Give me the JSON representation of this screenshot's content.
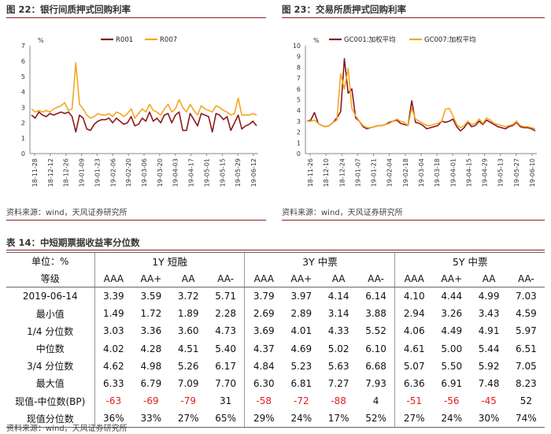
{
  "figure22": {
    "title": "图 22：银行间质押式回购利率",
    "unit": "%",
    "legend": [
      "R001",
      "R007"
    ],
    "source": "资料来源：wind，天风证券研究所"
  },
  "figure23": {
    "title": "图 23：交易所质押式回购利率",
    "unit": "%",
    "legend": [
      "GC001:加权平均",
      "GC007:加权平均"
    ],
    "source": "资料来源：wind，天风证券研究所"
  },
  "colors": {
    "series1": "#8b1a1a",
    "series2": "#f5a623",
    "rule": "#8a1e1e",
    "negative": "#e02020"
  },
  "chart_data": [
    {
      "type": "line",
      "title": "图 22：银行间质押式回购利率",
      "ylabel": "%",
      "ylim": [
        0,
        7
      ],
      "yticks": [
        "0",
        "1",
        "2",
        "3",
        "4",
        "5",
        "6",
        "7"
      ],
      "xticks": [
        "18-11-28",
        "18-12-12",
        "18-12-26",
        "19-01-09",
        "19-01-23",
        "19-02-06",
        "19-02-20",
        "19-03-06",
        "19-03-20",
        "19-04-03",
        "19-04-17",
        "19-05-01",
        "19-05-15",
        "19-05-29",
        "19-06-12"
      ],
      "legend_position": "top-center",
      "series": [
        {
          "name": "R001",
          "values": [
            2.5,
            2.3,
            2.7,
            2.5,
            2.4,
            2.6,
            2.5,
            2.6,
            2.7,
            2.6,
            2.7,
            2.4,
            1.4,
            2.5,
            2.3,
            1.6,
            1.5,
            1.9,
            2.1,
            2.2,
            2.2,
            2.3,
            2.0,
            2.3,
            2.1,
            1.9,
            2.0,
            2.4,
            1.8,
            1.9,
            2.3,
            2.1,
            2.7,
            2.1,
            2.3,
            2.0,
            2.5,
            2.6,
            2.0,
            2.5,
            2.7,
            1.5,
            1.5,
            2.6,
            2.2,
            1.8,
            2.6,
            2.5,
            2.4,
            1.4,
            2.6,
            2.5,
            2.2,
            2.4,
            1.5,
            2.0,
            2.5,
            1.6,
            1.8,
            1.9,
            2.1,
            1.8
          ]
        },
        {
          "name": "R007",
          "values": [
            2.9,
            2.7,
            2.8,
            2.7,
            2.8,
            2.7,
            2.9,
            3.0,
            3.1,
            3.3,
            2.8,
            2.9,
            5.9,
            3.2,
            2.9,
            2.5,
            2.3,
            2.4,
            2.6,
            2.5,
            2.5,
            2.6,
            2.4,
            2.7,
            2.6,
            2.4,
            2.6,
            2.9,
            2.3,
            2.6,
            2.9,
            2.7,
            3.2,
            2.8,
            2.7,
            2.5,
            2.9,
            3.2,
            2.7,
            2.9,
            3.5,
            3.0,
            2.7,
            3.2,
            2.8,
            2.5,
            3.1,
            2.9,
            2.8,
            2.7,
            3.1,
            3.0,
            2.8,
            2.7,
            2.5,
            2.6,
            3.6,
            2.5,
            2.5,
            2.5,
            2.6,
            2.5
          ]
        }
      ]
    },
    {
      "type": "line",
      "title": "图 23：交易所质押式回购利率",
      "ylabel": "%",
      "ylim": [
        0,
        10
      ],
      "yticks": [
        "0",
        "1",
        "2",
        "3",
        "4",
        "5",
        "6",
        "7",
        "8",
        "9",
        "10"
      ],
      "xticks": [
        "18-11-26",
        "18-12-10",
        "18-12-24",
        "19-01-07",
        "19-01-21",
        "19-02-04",
        "19-02-18",
        "19-03-04",
        "19-03-18",
        "19-04-01",
        "19-04-15",
        "19-04-29",
        "19-05-13",
        "19-05-27",
        "19-06-10"
      ],
      "legend_position": "top-center",
      "series": [
        {
          "name": "GC001:加权平均",
          "values": [
            3.0,
            3.1,
            3.8,
            2.8,
            2.6,
            2.5,
            2.6,
            2.9,
            3.3,
            3.9,
            8.8,
            5.6,
            6.0,
            3.3,
            3.0,
            2.5,
            2.3,
            2.4,
            2.5,
            2.6,
            2.6,
            2.7,
            2.9,
            3.0,
            3.1,
            2.8,
            2.7,
            2.6,
            4.9,
            2.9,
            2.8,
            2.6,
            2.3,
            2.4,
            2.5,
            2.6,
            3.0,
            2.9,
            3.0,
            3.2,
            2.5,
            2.1,
            2.4,
            2.9,
            2.5,
            2.6,
            3.0,
            2.7,
            3.1,
            2.9,
            2.7,
            2.5,
            2.4,
            2.3,
            2.5,
            2.6,
            2.9,
            2.5,
            2.4,
            2.4,
            2.3,
            2.1
          ]
        },
        {
          "name": "GC007:加权平均",
          "values": [
            3.0,
            3.0,
            3.1,
            2.8,
            2.6,
            2.5,
            2.6,
            2.9,
            3.1,
            7.4,
            6.0,
            7.9,
            4.2,
            3.5,
            3.0,
            2.6,
            2.4,
            2.4,
            2.5,
            2.6,
            2.6,
            2.7,
            2.8,
            3.0,
            3.2,
            3.0,
            2.9,
            2.6,
            4.2,
            3.2,
            3.0,
            2.8,
            2.6,
            2.6,
            2.7,
            2.8,
            3.0,
            4.1,
            4.2,
            3.5,
            2.7,
            2.4,
            2.6,
            3.0,
            2.7,
            2.8,
            3.2,
            2.8,
            3.3,
            3.1,
            2.8,
            2.7,
            2.6,
            2.5,
            2.6,
            2.7,
            3.0,
            2.6,
            2.5,
            2.5,
            2.4,
            2.3
          ]
        }
      ]
    }
  ],
  "table": {
    "title": "表 14：中短期票据收益率分位数",
    "unit_label": "单位：%",
    "grade_label": "等级",
    "groups": [
      "1Y 短融",
      "3Y 中票",
      "5Y 中票"
    ],
    "grades": [
      "AAA",
      "AA+",
      "AA",
      "AA-",
      "AAA",
      "AA+",
      "AA",
      "AA-",
      "AAA",
      "AA+",
      "AA",
      "AA-"
    ],
    "rows": [
      {
        "label": "2019-06-14",
        "values": [
          "3.39",
          "3.59",
          "3.72",
          "5.71",
          "3.79",
          "3.97",
          "4.14",
          "6.14",
          "4.10",
          "4.44",
          "4.99",
          "7.03"
        ]
      },
      {
        "label": "最小值",
        "values": [
          "1.49",
          "1.72",
          "1.89",
          "2.28",
          "2.69",
          "2.89",
          "3.14",
          "3.88",
          "2.94",
          "3.26",
          "3.43",
          "4.59"
        ]
      },
      {
        "label": "1/4 分位数",
        "values": [
          "3.03",
          "3.36",
          "3.60",
          "4.73",
          "3.69",
          "4.01",
          "4.33",
          "5.52",
          "4.06",
          "4.49",
          "4.91",
          "5.97"
        ]
      },
      {
        "label": "中位数",
        "values": [
          "4.02",
          "4.28",
          "4.51",
          "5.40",
          "4.37",
          "4.69",
          "5.02",
          "6.10",
          "4.61",
          "5.00",
          "5.44",
          "6.51"
        ]
      },
      {
        "label": "3/4 分位数",
        "values": [
          "4.62",
          "4.98",
          "5.26",
          "6.17",
          "4.84",
          "5.23",
          "5.63",
          "6.68",
          "5.07",
          "5.50",
          "5.92",
          "7.05"
        ]
      },
      {
        "label": "最大值",
        "values": [
          "6.33",
          "6.79",
          "7.09",
          "7.70",
          "6.30",
          "6.81",
          "7.27",
          "7.93",
          "6.36",
          "6.91",
          "7.48",
          "8.23"
        ]
      },
      {
        "label": "现值-中位数(BP)",
        "values": [
          "-63",
          "-69",
          "-79",
          "31",
          "-58",
          "-72",
          "-88",
          "4",
          "-51",
          "-56",
          "-45",
          "52"
        ]
      },
      {
        "label": "现值分位数",
        "values": [
          "36%",
          "33%",
          "27%",
          "65%",
          "29%",
          "24%",
          "17%",
          "52%",
          "27%",
          "24%",
          "30%",
          "74%"
        ]
      }
    ],
    "source": "资料来源：wind，天风证券研究所"
  }
}
